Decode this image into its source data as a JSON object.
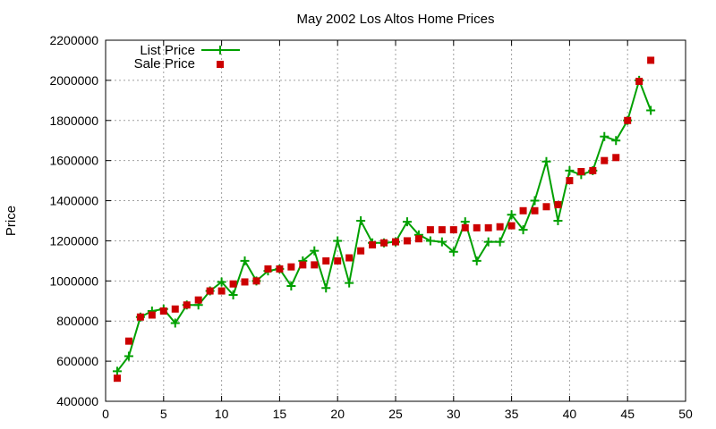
{
  "chart_data": {
    "type": "scatter",
    "title": "May 2002 Los Altos Home Prices",
    "xlabel": "",
    "ylabel": "Price",
    "xlim": [
      0,
      50
    ],
    "ylim": [
      400000,
      2200000
    ],
    "xticks": [
      0,
      5,
      10,
      15,
      20,
      25,
      30,
      35,
      40,
      45,
      50
    ],
    "yticks": [
      400000,
      600000,
      800000,
      1000000,
      1200000,
      1400000,
      1600000,
      1800000,
      2000000,
      2200000
    ],
    "grid": true,
    "legend_position": "top-left",
    "series": [
      {
        "name": "List Price",
        "style": "line-with-plus-markers",
        "color": "#00a000",
        "x": [
          1,
          2,
          3,
          4,
          5,
          6,
          7,
          8,
          9,
          10,
          11,
          12,
          13,
          14,
          15,
          16,
          17,
          18,
          19,
          20,
          21,
          22,
          23,
          24,
          25,
          26,
          27,
          28,
          29,
          30,
          31,
          32,
          33,
          34,
          35,
          36,
          37,
          38,
          39,
          40,
          41,
          42,
          43,
          44,
          45,
          46,
          47
        ],
        "y": [
          550000,
          625000,
          820000,
          850000,
          860000,
          790000,
          880000,
          880000,
          950000,
          995000,
          930000,
          1100000,
          1000000,
          1050000,
          1060000,
          975000,
          1100000,
          1150000,
          965000,
          1200000,
          990000,
          1300000,
          1190000,
          1190000,
          1195000,
          1295000,
          1230000,
          1200000,
          1195000,
          1145000,
          1295000,
          1100000,
          1195000,
          1195000,
          1330000,
          1255000,
          1400000,
          1595000,
          1300000,
          1550000,
          1530000,
          1550000,
          1720000,
          1700000,
          1800000,
          2000000,
          1850000
        ]
      },
      {
        "name": "Sale Price",
        "style": "square-markers",
        "color": "#cc0000",
        "x": [
          1,
          2,
          3,
          4,
          5,
          6,
          7,
          8,
          9,
          10,
          11,
          12,
          13,
          14,
          15,
          16,
          17,
          18,
          19,
          20,
          21,
          22,
          23,
          24,
          25,
          26,
          27,
          28,
          29,
          30,
          31,
          32,
          33,
          34,
          35,
          36,
          37,
          38,
          39,
          40,
          41,
          42,
          43,
          44,
          45,
          46,
          47
        ],
        "y": [
          515000,
          700000,
          820000,
          830000,
          850000,
          860000,
          880000,
          905000,
          950000,
          950000,
          985000,
          995000,
          1000000,
          1060000,
          1060000,
          1070000,
          1080000,
          1080000,
          1100000,
          1100000,
          1115000,
          1150000,
          1180000,
          1190000,
          1195000,
          1200000,
          1210000,
          1255000,
          1255000,
          1255000,
          1265000,
          1265000,
          1265000,
          1270000,
          1275000,
          1350000,
          1350000,
          1370000,
          1380000,
          1500000,
          1545000,
          1550000,
          1600000,
          1615000,
          1800000,
          1995000,
          2100000
        ]
      }
    ]
  }
}
